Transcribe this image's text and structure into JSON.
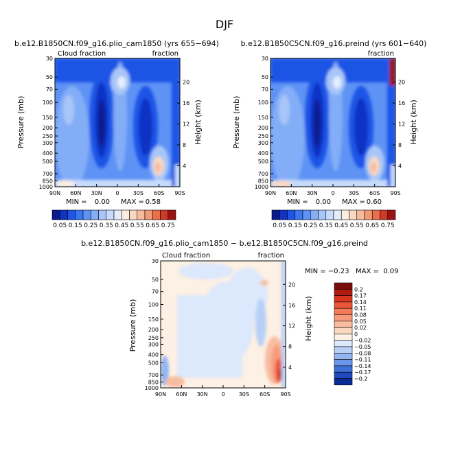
{
  "page_title": "DJF",
  "colorbar_top": {
    "labels": [
      "0.05",
      "0.15",
      "0.25",
      "0.35",
      "0.45",
      "0.55",
      "0.65",
      "0.75"
    ],
    "colors": [
      "#0a1a8c",
      "#1033c4",
      "#1f55e6",
      "#3c77f2",
      "#5e92f5",
      "#83adf7",
      "#a8c6f8",
      "#c8dbfa",
      "#e4edfb",
      "#fbeee0",
      "#f9d8c2",
      "#f6bb9c",
      "#f19a75",
      "#e8704d",
      "#cf3a27",
      "#9b1212"
    ]
  },
  "colorbar_diff": {
    "labels": [
      "0.2",
      "0.17",
      "0.14",
      "0.11",
      "0.08",
      "0.05",
      "0.02",
      "0",
      "−0.02",
      "−0.05",
      "−0.08",
      "−0.11",
      "−0.14",
      "−0.17",
      "−0.2"
    ],
    "colors": [
      "#7a0c0c",
      "#b31b12",
      "#d8341f",
      "#ea5738",
      "#f27a57",
      "#f69b7d",
      "#f8bca0",
      "#fad8c2",
      "#fdf0e4",
      "#dce8fb",
      "#b8d0f7",
      "#93b6f2",
      "#6a97ea",
      "#3f6fd9",
      "#1f49bd",
      "#0b2a96"
    ]
  },
  "chart_data": [
    {
      "type": "heatmap",
      "title": "b.e12.B1850CN.f09_g16.plio_cam1850 (yrs 655−694)",
      "left_label": "Cloud fraction",
      "right_label": "fraction",
      "ylabel": "Pressure (mb)",
      "y2label": "Height (km)",
      "pressure_ticks": [
        "30",
        "50",
        "70",
        "100",
        "150",
        "200",
        "250",
        "300",
        "400",
        "500",
        "700",
        "850",
        "1000"
      ],
      "height_ticks": [
        "20",
        "16",
        "12",
        "8",
        "4"
      ],
      "x_ticks": [
        "90N",
        "60N",
        "30N",
        "0",
        "30S",
        "60S",
        "90S"
      ],
      "min_label": "MIN =",
      "min_value": "0.00",
      "max_label": "MAX =",
      "max_value": "0.58"
    },
    {
      "type": "heatmap",
      "title": "b.e12.B1850C5CN.f09_g16.preind (yrs 601−640)",
      "left_label": "",
      "right_label": "fraction",
      "ylabel": "Pressure (mb)",
      "y2label": "Height (km)",
      "pressure_ticks": [
        "30",
        "50",
        "70",
        "100",
        "150",
        "200",
        "250",
        "300",
        "400",
        "500",
        "700",
        "850",
        "1000"
      ],
      "height_ticks": [
        "20",
        "16",
        "12",
        "8",
        "4"
      ],
      "x_ticks": [
        "90N",
        "60N",
        "30N",
        "0",
        "30S",
        "60S",
        "90S"
      ],
      "min_label": "MIN =",
      "min_value": "0.00",
      "max_label": "MAX =",
      "max_value": "0.60"
    },
    {
      "type": "heatmap",
      "title": "b.e12.B1850CN.f09_g16.plio_cam1850 − b.e12.B1850C5CN.f09_g16.preind",
      "left_label": "Cloud fraction",
      "right_label": "fraction",
      "ylabel": "Pressure (mb)",
      "y2label": "Height (km)",
      "pressure_ticks": [
        "30",
        "50",
        "70",
        "100",
        "150",
        "200",
        "250",
        "300",
        "400",
        "500",
        "700",
        "850",
        "1000"
      ],
      "height_ticks": [
        "20",
        "16",
        "12",
        "8",
        "4"
      ],
      "x_ticks": [
        "90N",
        "60N",
        "30N",
        "0",
        "30S",
        "60S",
        "90S"
      ],
      "minmax_text": "MIN = −0.23   MAX =  0.09"
    }
  ]
}
